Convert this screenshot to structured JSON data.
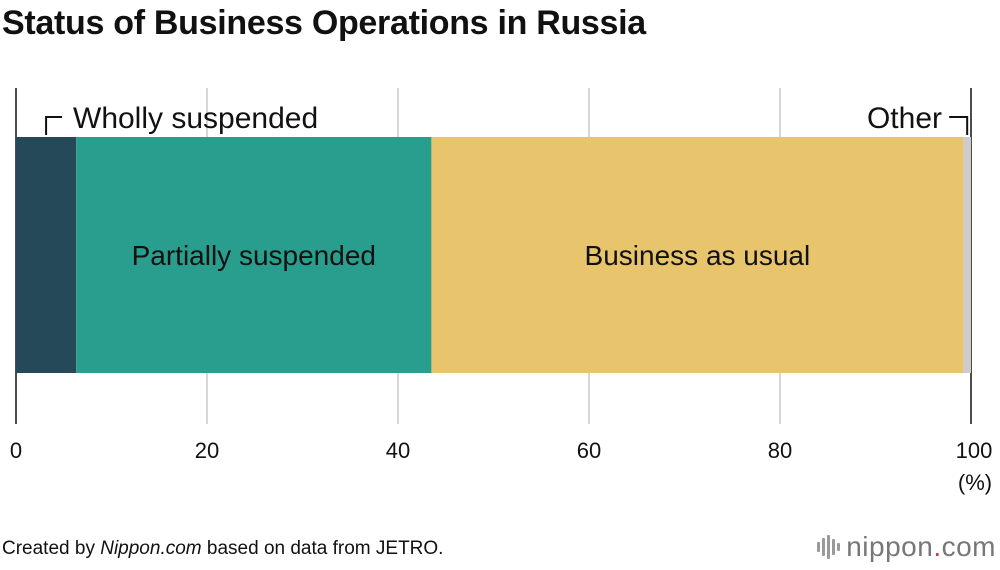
{
  "title": "Status of Business Operations in Russia",
  "chart_data": {
    "type": "stacked-bar",
    "orientation": "horizontal",
    "segments": [
      {
        "name": "Wholly suspended",
        "value": 6.3,
        "color": "#26495a"
      },
      {
        "name": "Partially suspended",
        "value": 37.2,
        "color": "#2a9e8e"
      },
      {
        "name": "Business as usual",
        "value": 55.7,
        "color": "#e8c46c"
      },
      {
        "name": "Other",
        "value": 0.8,
        "color": "#cccccc"
      }
    ],
    "xlim": [
      0,
      100
    ],
    "ticks": [
      "0",
      "20",
      "40",
      "60",
      "80",
      "100"
    ],
    "unit_label": "(%)",
    "grid": true
  },
  "footer": {
    "credit_prefix": "Created by ",
    "credit_source": "Nippon.com",
    "credit_suffix": " based on data from JETRO."
  },
  "brand": {
    "name": "nippon",
    "dot": ".",
    "tld": "com"
  }
}
